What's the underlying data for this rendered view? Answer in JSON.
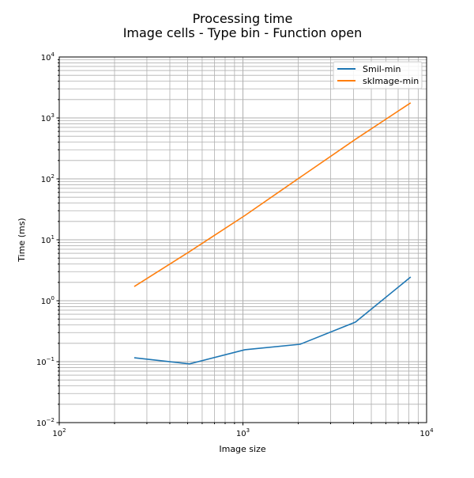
{
  "chart_data": {
    "type": "line",
    "title": "Processing time",
    "subtitle": "Image cells - Type bin - Function open",
    "xlabel": "Image size",
    "ylabel": "Time (ms)",
    "xscale": "log",
    "yscale": "log",
    "xlim": [
      100,
      10000
    ],
    "ylim": [
      0.01,
      10000
    ],
    "x_ticks": [
      {
        "base": "10",
        "exp": "2"
      },
      {
        "base": "10",
        "exp": "3"
      },
      {
        "base": "10",
        "exp": "4"
      }
    ],
    "y_ticks": [
      {
        "base": "10",
        "exp": "−2"
      },
      {
        "base": "10",
        "exp": "−1"
      },
      {
        "base": "10",
        "exp": "0"
      },
      {
        "base": "10",
        "exp": "1"
      },
      {
        "base": "10",
        "exp": "2"
      },
      {
        "base": "10",
        "exp": "3"
      },
      {
        "base": "10",
        "exp": "4"
      }
    ],
    "grid": "major and minor",
    "legend_position": "top-right",
    "x": [
      256,
      512,
      1024,
      2048,
      4096,
      8192
    ],
    "series": [
      {
        "name": "Smil-min",
        "color": "#1f77b4",
        "values": [
          0.116,
          0.092,
          0.157,
          0.193,
          0.446,
          2.45
        ]
      },
      {
        "name": "skImage-min",
        "color": "#ff7f0e",
        "values": [
          1.71,
          6.4,
          25,
          106,
          445,
          1770
        ]
      }
    ]
  }
}
